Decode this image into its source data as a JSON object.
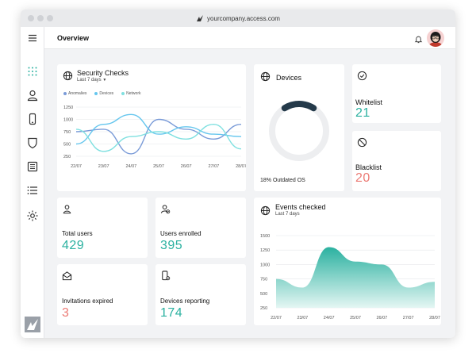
{
  "browser": {
    "url": "yourcompany.access.com"
  },
  "header": {
    "title": "Overview"
  },
  "sidebar": {
    "items": [
      {
        "icon": "grid-icon"
      },
      {
        "icon": "user-icon"
      },
      {
        "icon": "phone-icon"
      },
      {
        "icon": "shield-icon"
      },
      {
        "icon": "list-box-icon"
      },
      {
        "icon": "list-icon"
      },
      {
        "icon": "gear-icon"
      }
    ]
  },
  "colors": {
    "teal": "#2bb1a0",
    "salmon": "#ec7b75",
    "anomalies": "#7a9bd8",
    "devices": "#65c6ee",
    "network": "#7fe0e0",
    "gauge_track": "#edeef0",
    "gauge_arc": "#243a4a"
  },
  "security_checks": {
    "title": "Security Checks",
    "subtitle": "Last 7 days",
    "legend": [
      "Anomalies",
      "Devices",
      "Network"
    ]
  },
  "devices": {
    "title": "Devices",
    "caption": "18% Outdated OS",
    "outdated_fraction": 0.18
  },
  "whitelist": {
    "title": "Whitelist",
    "value": "21"
  },
  "blacklist": {
    "title": "Blacklist",
    "value": "20"
  },
  "stats": {
    "total_users": {
      "label": "Total users",
      "value": "429"
    },
    "users_enrolled": {
      "label": "Users enrolled",
      "value": "395"
    },
    "invitations_expired": {
      "label": "Invitations expired",
      "value": "3"
    },
    "devices_reporting": {
      "label": "Devices reporting",
      "value": "174"
    }
  },
  "events": {
    "title": "Events checked",
    "subtitle": "Last 7 days"
  },
  "chart_data": [
    {
      "type": "line",
      "title": "Security Checks",
      "x": [
        "22/07",
        "23/07",
        "24/07",
        "25/07",
        "26/07",
        "27/07",
        "28/07"
      ],
      "yticks": [
        1250,
        1000,
        750,
        500,
        250
      ],
      "ylim": [
        250,
        1250
      ],
      "series": [
        {
          "name": "Anomalies",
          "values": [
            750,
            800,
            300,
            1000,
            800,
            600,
            900
          ]
        },
        {
          "name": "Devices",
          "values": [
            500,
            900,
            1100,
            700,
            850,
            700,
            650
          ]
        },
        {
          "name": "Network",
          "values": [
            800,
            350,
            650,
            750,
            600,
            900,
            400
          ]
        }
      ],
      "legend": "top-left",
      "grid": true
    },
    {
      "type": "area",
      "title": "Events checked",
      "x": [
        "22/07",
        "23/07",
        "24/07",
        "25/07",
        "26/07",
        "27/07",
        "28/07"
      ],
      "yticks": [
        1500,
        1250,
        1000,
        750,
        500,
        250
      ],
      "ylim": [
        250,
        1500
      ],
      "values": [
        750,
        600,
        1300,
        1050,
        1000,
        600,
        700
      ],
      "grid": true
    }
  ]
}
